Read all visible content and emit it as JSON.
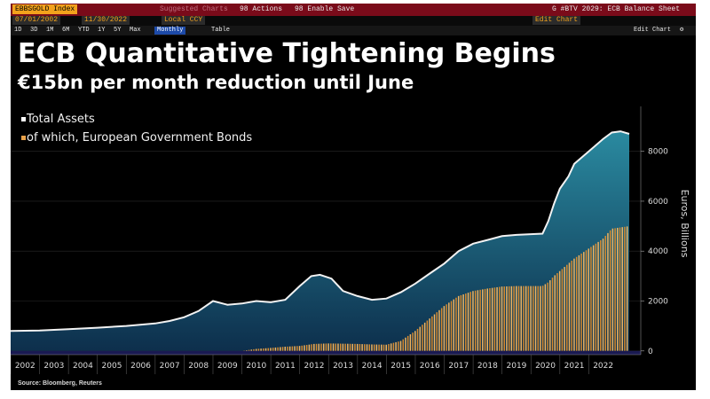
{
  "toolbar": {
    "ticker": "EBBSGOLD Index",
    "suggested_charts": "Suggested Charts",
    "actions": "98 Actions",
    "enable_save": "98 Enable Save",
    "window_title": "G #BTV 2029: ECB Balance Sheet",
    "start_date": "07/01/2002",
    "end_date": "11/30/2022",
    "currency": "Local CCY",
    "periods": [
      "1D",
      "3D",
      "1M",
      "6M",
      "YTD",
      "1Y",
      "5Y",
      "Max"
    ],
    "frequency": "Monthly",
    "table_label": "Table",
    "right_field": "Edit Chart",
    "edit_chart": "Edit Chart"
  },
  "colors": {
    "header_bar": "#7a0b1a",
    "assets_fill": "#1b6f86",
    "bonds_fill": "#e9a24a",
    "axis_band": "#1a1a52"
  },
  "headline": {
    "title": "ECB Quantitative Tightening Begins",
    "subtitle": "€15bn per month reduction until June"
  },
  "source": "Source: Bloomberg, Reuters",
  "chart_data": {
    "type": "area",
    "title": "ECB Quantitative Tightening Begins",
    "subtitle": "€15bn per month reduction until June",
    "ylabel": "Euros, Billions",
    "ylim": [
      -150,
      9800
    ],
    "yticks": [
      0,
      2000,
      4000,
      6000,
      8000
    ],
    "x_range": [
      2001.5,
      2023.3
    ],
    "xtick_labels": [
      "2002",
      "2003",
      "2004",
      "2005",
      "2006",
      "2007",
      "2008",
      "2009",
      "2010",
      "2011",
      "2012",
      "2013",
      "2014",
      "2015",
      "2016",
      "2017",
      "2018",
      "2019",
      "2020",
      "2021",
      "2022"
    ],
    "legend_position": "top-left",
    "series": [
      {
        "name": "Total Assets",
        "style": "filled area with white outline",
        "x": [
          2001.5,
          2002.5,
          2003.5,
          2004.5,
          2005.5,
          2006.5,
          2007.0,
          2007.5,
          2008.0,
          2008.5,
          2009.0,
          2009.5,
          2010.0,
          2010.5,
          2011.0,
          2011.5,
          2011.9,
          2012.2,
          2012.6,
          2013.0,
          2013.5,
          2014.0,
          2014.5,
          2015.0,
          2015.5,
          2016.0,
          2016.5,
          2017.0,
          2017.5,
          2018.0,
          2018.5,
          2019.0,
          2019.5,
          2019.9,
          2020.1,
          2020.3,
          2020.5,
          2020.8,
          2021.0,
          2021.5,
          2022.0,
          2022.3,
          2022.6,
          2022.9
        ],
        "values": [
          800,
          820,
          870,
          930,
          1000,
          1100,
          1200,
          1350,
          1600,
          2000,
          1850,
          1900,
          2000,
          1950,
          2050,
          2600,
          3000,
          3050,
          2900,
          2400,
          2200,
          2050,
          2100,
          2350,
          2700,
          3100,
          3500,
          4000,
          4300,
          4450,
          4600,
          4650,
          4680,
          4700,
          5200,
          5900,
          6500,
          7000,
          7500,
          8000,
          8500,
          8750,
          8800,
          8700
        ]
      },
      {
        "name": "of which, European Government Bonds",
        "style": "orange bars",
        "x": [
          2009.5,
          2010.0,
          2010.5,
          2011.0,
          2011.5,
          2012.0,
          2012.5,
          2013.0,
          2013.5,
          2014.0,
          2014.5,
          2015.0,
          2015.5,
          2016.0,
          2016.5,
          2017.0,
          2017.5,
          2018.0,
          2018.5,
          2019.0,
          2019.5,
          2019.9,
          2020.1,
          2020.3,
          2020.6,
          2021.0,
          2021.5,
          2022.0,
          2022.3,
          2022.9
        ],
        "values": [
          0,
          80,
          120,
          170,
          200,
          280,
          300,
          290,
          280,
          260,
          250,
          400,
          800,
          1300,
          1800,
          2200,
          2400,
          2500,
          2580,
          2600,
          2600,
          2600,
          2750,
          3000,
          3300,
          3700,
          4100,
          4500,
          4900,
          5000
        ]
      }
    ]
  }
}
